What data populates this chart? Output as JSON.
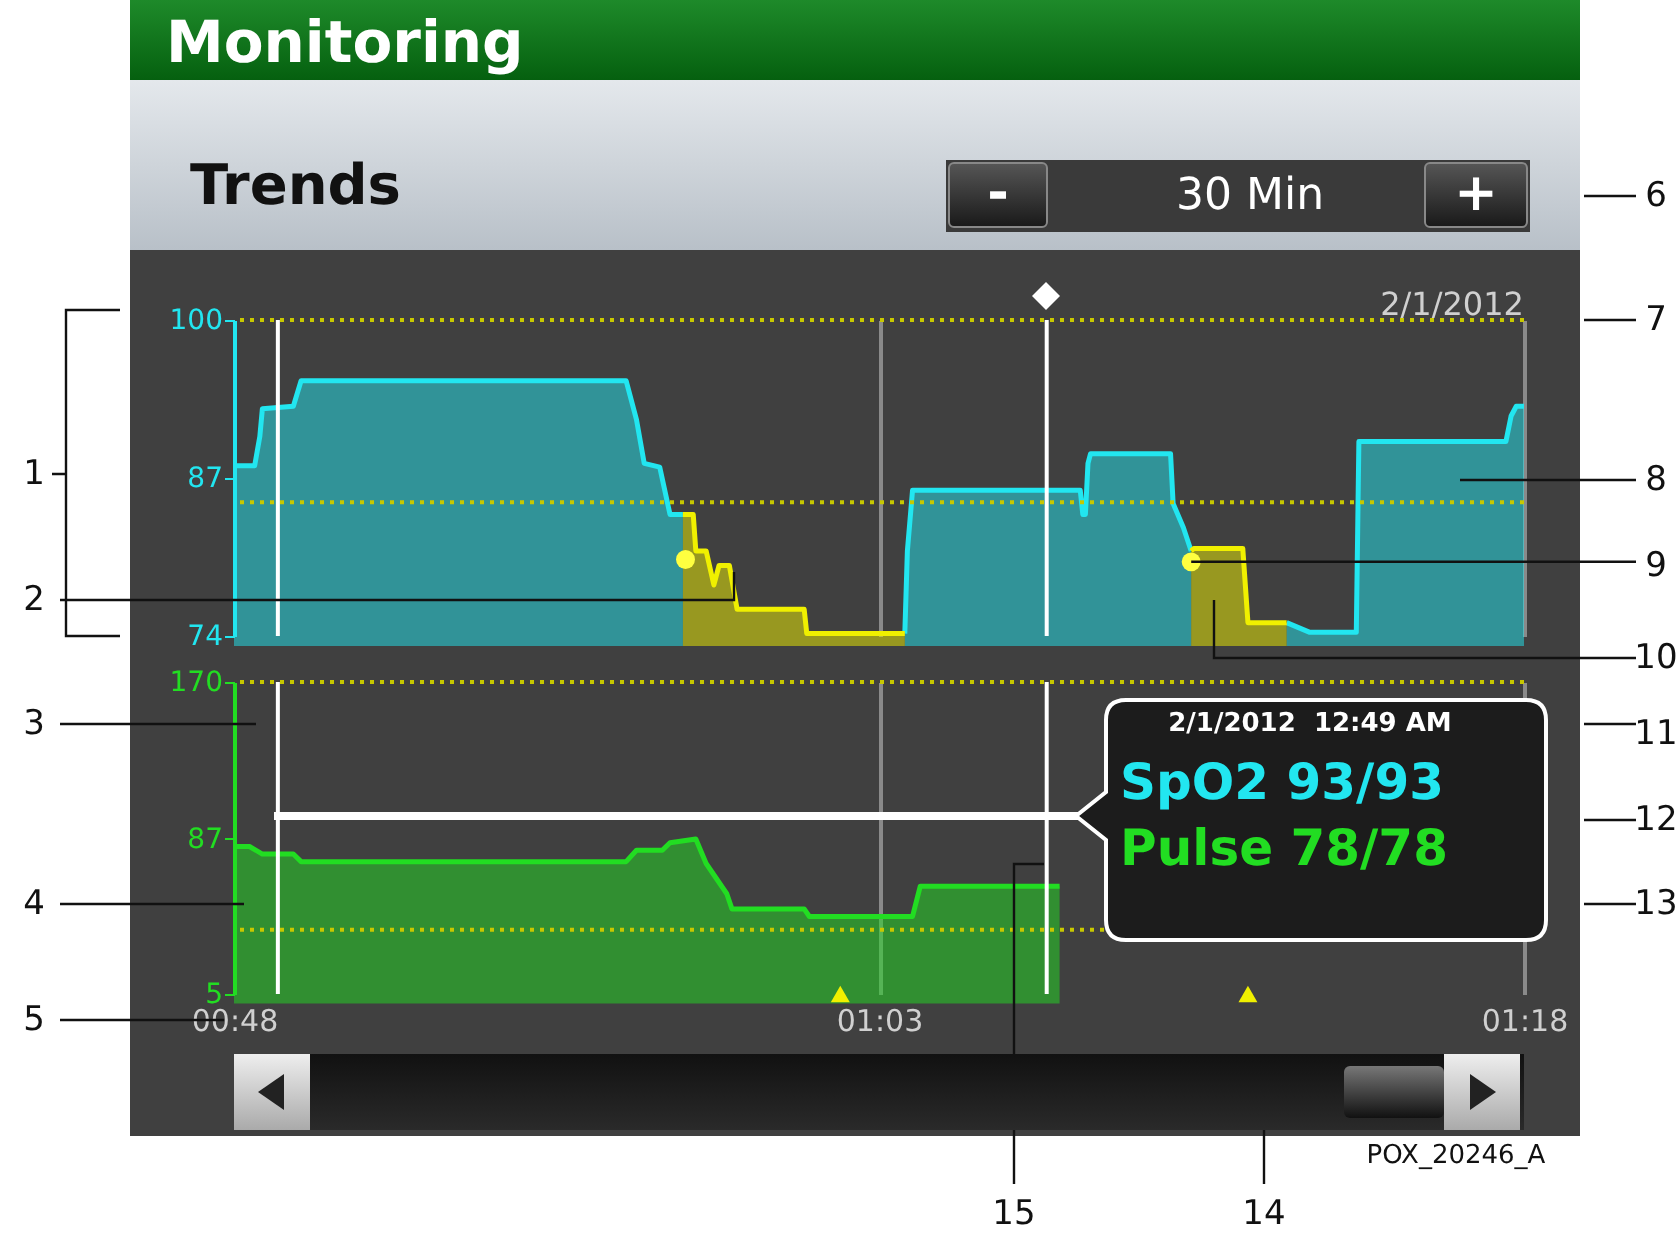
{
  "chart_data": [
    {
      "type": "area",
      "title": "Monitoring",
      "subtitle": "Trends",
      "xlim": [
        0.8,
        1.3
      ],
      "xticks": [
        {
          "value": 0.8,
          "label": null
        },
        {
          "value": 1.05,
          "label": null
        },
        {
          "value": 1.3,
          "label": null
        }
      ],
      "ylim": [
        74,
        100
      ],
      "yticks": [
        74,
        87,
        100
      ],
      "tick_labels": "y",
      "grid": "x",
      "ref_lines": [
        {
          "axis": "y",
          "value": 100,
          "color": "#c8c800",
          "line_style": "dotted"
        },
        {
          "axis": "y",
          "value": 85,
          "color": "#c8c800",
          "line_style": "dotted"
        },
        {
          "axis": "x",
          "value": 0.817,
          "color": "#ffffff"
        },
        {
          "axis": "x",
          "value": 1.115,
          "color": "#ffffff"
        }
      ],
      "series": [
        {
          "color": "#22e6f0",
          "x": [
            0.8,
            0.808,
            0.81,
            0.811,
            0.823,
            0.826,
            0.952,
            0.956,
            0.959,
            0.965,
            0.969,
            0.974,
            0.976,
            1.06,
            1.061,
            1.063,
            1.128,
            1.129,
            1.13,
            1.131,
            1.132,
            1.163,
            1.164,
            1.168,
            1.171,
            1.18,
            1.208,
            1.217,
            1.235,
            1.236,
            1.293,
            1.295,
            1.297,
            1.3
          ],
          "values": [
            88,
            88,
            90.4,
            92.7,
            92.9,
            95,
            95,
            91.8,
            88.2,
            87.9,
            84,
            84,
            null,
            74.2,
            81,
            86,
            86,
            84,
            84,
            88.2,
            89,
            89,
            84.9,
            82.9,
            81,
            null,
            75.1,
            74.3,
            74.3,
            90,
            90,
            92.1,
            92.9,
            92.9
          ]
        },
        {
          "color": "#f0f000",
          "x": [
            0.974,
            0.978,
            0.979,
            0.983,
            0.986,
            0.988,
            0.992,
            0.995,
            1.021,
            1.022,
            1.06,
            1.065,
            1.171,
            1.172,
            1.191,
            1.193,
            1.208
          ],
          "values": [
            84,
            84,
            81,
            81,
            78.2,
            79.8,
            79.8,
            76.2,
            76.2,
            74.2,
            74.2,
            null,
            81,
            81.2,
            81.2,
            75.1,
            75.1
          ]
        },
        {
          "type": "scatter",
          "marker": "circle",
          "color": "#ffff40",
          "x": [
            0.975,
            1.171
          ],
          "values": [
            80.3,
            80.1
          ]
        }
      ],
      "annotations": [
        "-",
        "30 Min",
        "+",
        "2/1/2012",
        "2/1/2012  12:49 AM",
        "SpO2 93/93",
        "Pulse 78/78",
        "1",
        "2",
        "3",
        "4",
        "5",
        "6",
        "7",
        "8",
        {
          "text": "9",
          "x": 1.171,
          "y": 80.1
        },
        "10",
        "11",
        "12",
        "13",
        "14",
        "15",
        "POX_20246_A"
      ]
    },
    {
      "type": "area",
      "xlim": [
        0.8,
        1.3
      ],
      "xticks": [
        {
          "value": 0.8,
          "label": "00:48"
        },
        {
          "value": 1.05,
          "label": "01:03"
        },
        {
          "value": 1.3,
          "label": "01:18"
        }
      ],
      "ylim": [
        5,
        170
      ],
      "yticks": [
        5,
        87,
        170
      ],
      "grid": "x",
      "ref_lines": [
        {
          "axis": "y",
          "value": 170,
          "color": "#c8c800",
          "line_style": "dotted"
        },
        {
          "axis": "y",
          "value": 39,
          "color": "#c8c800",
          "line_style": "dotted"
        },
        {
          "axis": "x",
          "value": 0.817,
          "color": "#ffffff"
        },
        {
          "axis": "x",
          "value": 1.115,
          "color": "#ffffff"
        }
      ],
      "series": [
        {
          "color": "#22dd22",
          "x": [
            0.8,
            0.806,
            0.811,
            0.823,
            0.826,
            0.952,
            0.956,
            0.966,
            0.969,
            0.979,
            0.983,
            0.991,
            0.993,
            1.021,
            1.023,
            1.05,
            1.063,
            1.066,
            1.12
          ],
          "values": [
            83,
            83,
            79,
            79,
            75,
            75,
            81,
            81,
            85,
            87,
            74,
            58,
            50,
            50,
            46,
            46,
            46,
            62,
            62
          ]
        },
        {
          "type": "scatter",
          "marker": "triangle",
          "color": "#f0f000",
          "x": [
            1.035,
            1.193
          ],
          "values": [
            5,
            5
          ]
        }
      ]
    }
  ]
}
